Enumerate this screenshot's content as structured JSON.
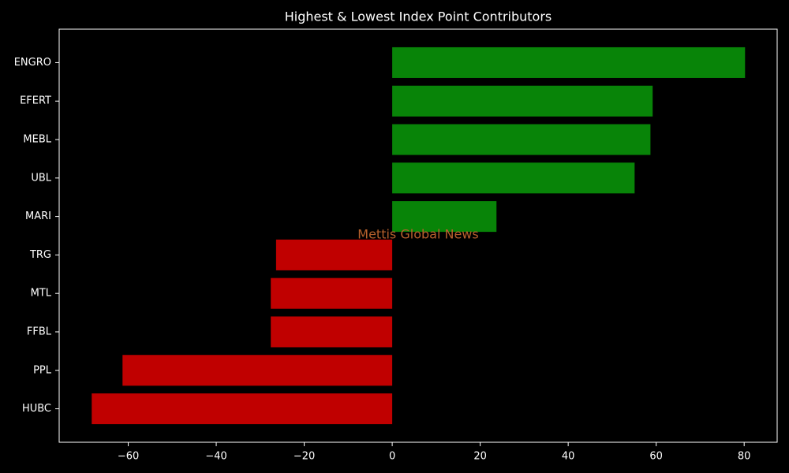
{
  "chart_data": {
    "type": "barh",
    "title": "Highest & Lowest Index Point Contributors",
    "watermark": "Mettis Global News",
    "categories": [
      "ENGRO",
      "EFERT",
      "MEBL",
      "UBL",
      "MARI",
      "TRG",
      "MTL",
      "FFBL",
      "PPL",
      "HUBC"
    ],
    "values": [
      80.2,
      59.2,
      58.7,
      55.1,
      23.7,
      -26.4,
      -27.6,
      -27.6,
      -61.3,
      -68.3
    ],
    "colors": [
      "#088408",
      "#088408",
      "#088408",
      "#088408",
      "#088408",
      "#c00000",
      "#c00000",
      "#c00000",
      "#c00000",
      "#c00000"
    ],
    "xlim": [
      -75.7,
      87.5
    ],
    "xticks": [
      {
        "value": -60,
        "label": "−60"
      },
      {
        "value": -40,
        "label": "−40"
      },
      {
        "value": -20,
        "label": "−20"
      },
      0,
      20,
      40,
      60,
      80
    ],
    "grid": false
  }
}
